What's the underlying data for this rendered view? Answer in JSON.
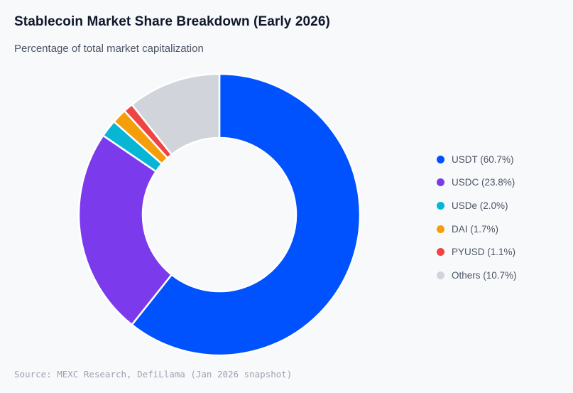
{
  "header": {
    "title": "Stablecoin Market Share Breakdown (Early 2026)",
    "subtitle": "Percentage of total market capitalization"
  },
  "footer": {
    "source": "Source: MEXC Research, DefiLlama (Jan 2026 snapshot)"
  },
  "chart_data": {
    "type": "pie",
    "variant": "donut",
    "title": "Stablecoin Market Share Breakdown (Early 2026)",
    "subtitle": "Percentage of total market capitalization",
    "unit": "%",
    "legend_position": "right",
    "slices": [
      {
        "label": "USDT",
        "value": 60.7,
        "legend": "USDT (60.7%)",
        "color": "#0052ff"
      },
      {
        "label": "USDC",
        "value": 23.8,
        "legend": "USDC (23.8%)",
        "color": "#7c3aed"
      },
      {
        "label": "USDe",
        "value": 2.0,
        "legend": "USDe (2.0%)",
        "color": "#06b6d4"
      },
      {
        "label": "DAI",
        "value": 1.7,
        "legend": "DAI (1.7%)",
        "color": "#f59e0b"
      },
      {
        "label": "PYUSD",
        "value": 1.1,
        "legend": "PYUSD (1.1%)",
        "color": "#ef4444"
      },
      {
        "label": "Others",
        "value": 10.7,
        "legend": "Others (10.7%)",
        "color": "#d1d5db"
      }
    ]
  }
}
